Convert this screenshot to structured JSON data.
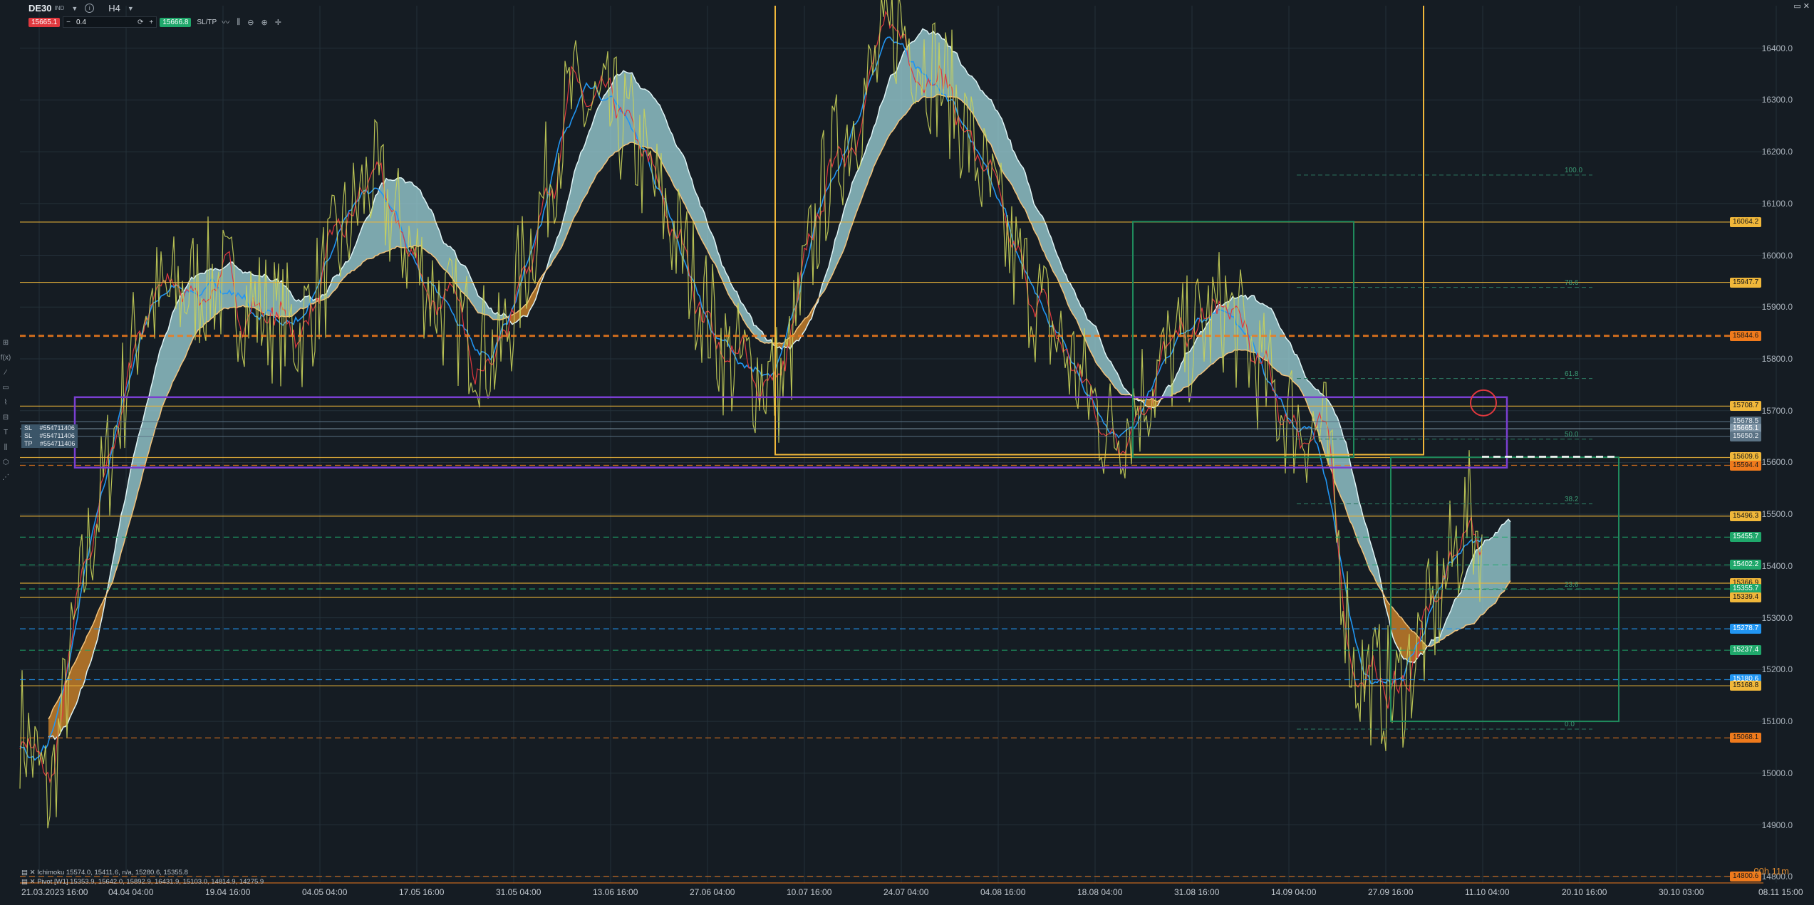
{
  "toolbar": {
    "symbol": "DE30",
    "exchange": "IND",
    "timeframe": "H4",
    "sell_price": "15665.1",
    "buy_price": "15666.8",
    "volume": "0.4",
    "minus": "−",
    "plus": "+",
    "sltp": "SL/TP"
  },
  "window_controls": "▭ ✕",
  "left_tools": [
    "⊞",
    "f(x)",
    "⁄",
    "▭",
    "⌇",
    "⊟",
    "T",
    "⫼",
    "⬡",
    "⋰"
  ],
  "y_axis": {
    "labels": [
      "16400.0",
      "16300.0",
      "16200.0",
      "16100.0",
      "16000.0",
      "15900.0",
      "15800.0",
      "15700.0",
      "15600.0",
      "15500.0",
      "15400.0",
      "15300.0",
      "15200.0",
      "15100.0",
      "15000.0",
      "14900.0",
      "14800.0"
    ],
    "range": [
      14788,
      16482
    ]
  },
  "x_axis": [
    "21.03.2023 16:00",
    "04.04 04:00",
    "19.04 16:00",
    "04.05 04:00",
    "17.05 16:00",
    "31.05 04:00",
    "13.06 16:00",
    "27.06 04:00",
    "10.07 16:00",
    "24.07 04:00",
    "04.08 16:00",
    "18.08 04:00",
    "31.08 16:00",
    "14.09 04:00",
    "27.09 16:00",
    "11.10 04:00",
    "20.10 16:00",
    "30.10 03:00",
    "08.11 15:00"
  ],
  "price_tags": [
    {
      "text": "16064.2",
      "price": 16064.2,
      "bg": "#f0b73a",
      "fg": "#1b1b1b"
    },
    {
      "text": "15947.7",
      "price": 15947.7,
      "bg": "#f0b73a",
      "fg": "#1b1b1b"
    },
    {
      "text": "15844.6",
      "price": 15844.6,
      "bg": "#ef7a1c",
      "fg": "#1b1b1b"
    },
    {
      "text": "15708.7",
      "price": 15708.7,
      "bg": "#f0b73a",
      "fg": "#1b1b1b"
    },
    {
      "text": "15678.5",
      "price": 15678.5,
      "bg": "#5b7385",
      "fg": "#e6ebf0"
    },
    {
      "text": "15665.1",
      "price": 15665.1,
      "bg": "#7f95a6",
      "fg": "#ffffff"
    },
    {
      "text": "15650.2",
      "price": 15650.2,
      "bg": "#5b7385",
      "fg": "#e6ebf0"
    },
    {
      "text": "15609.6",
      "price": 15609.6,
      "bg": "#f0b73a",
      "fg": "#1b1b1b"
    },
    {
      "text": "15594.4",
      "price": 15594.4,
      "bg": "#ef7a1c",
      "fg": "#1b1b1b"
    },
    {
      "text": "15496.3",
      "price": 15496.3,
      "bg": "#f0b73a",
      "fg": "#1b1b1b"
    },
    {
      "text": "15455.7",
      "price": 15455.7,
      "bg": "#1fa86b",
      "fg": "#ffffff"
    },
    {
      "text": "15402.2",
      "price": 15402.2,
      "bg": "#1fa86b",
      "fg": "#ffffff"
    },
    {
      "text": "15366.9",
      "price": 15366.9,
      "bg": "#f0b73a",
      "fg": "#1b1b1b"
    },
    {
      "text": "15355.7",
      "price": 15355.7,
      "bg": "#1fa86b",
      "fg": "#ffffff"
    },
    {
      "text": "15339.4",
      "price": 15339.4,
      "bg": "#f0b73a",
      "fg": "#1b1b1b"
    },
    {
      "text": "15278.7",
      "price": 15278.7,
      "bg": "#2196f3",
      "fg": "#ffffff"
    },
    {
      "text": "15237.4",
      "price": 15237.4,
      "bg": "#1fa86b",
      "fg": "#ffffff"
    },
    {
      "text": "15180.6",
      "price": 15180.6,
      "bg": "#2196f3",
      "fg": "#ffffff"
    },
    {
      "text": "15168.8",
      "price": 15168.8,
      "bg": "#f0b73a",
      "fg": "#1b1b1b"
    },
    {
      "text": "15068.1",
      "price": 15068.1,
      "bg": "#ef7a1c",
      "fg": "#1b1b1b"
    },
    {
      "text": "14800.6",
      "price": 14800.6,
      "bg": "#ef7a1c",
      "fg": "#1b1b1b"
    }
  ],
  "fib_levels": [
    {
      "label": "100.0",
      "price": 16155
    },
    {
      "label": "78.6",
      "price": 15938
    },
    {
      "label": "61.8",
      "price": 15762
    },
    {
      "label": "50.0",
      "price": 15645
    },
    {
      "label": "38.2",
      "price": 15520
    },
    {
      "label": "23.6",
      "price": 15355
    },
    {
      "label": "0.0",
      "price": 15085
    }
  ],
  "orders": [
    {
      "type": "SL",
      "id": "#554711406"
    },
    {
      "type": "SL",
      "id": "#554711406"
    },
    {
      "type": "TP",
      "id": "#554711406"
    }
  ],
  "indicators": [
    "Ichimoku 15574.0, 15411.6, n/a, 15280.6, 15355.8",
    "Pivot [W1] 15353.9, 15642.0, 15892.9, 16431.9, 15103.0, 14814.9, 14275.9"
  ],
  "countdown": "00h 11m",
  "colors": {
    "background": "#151c23",
    "grid": "#243039",
    "price_line": "#c9d35a",
    "red": "#e0383e",
    "blue": "#2196f3",
    "kumo_bull": "#9fd6dc",
    "kumo_bear": "#d98a2b",
    "yellow": "#f0b73a",
    "orange": "#ef7a1c",
    "green": "#1fa86b",
    "purple": "#7a3fd1"
  }
}
